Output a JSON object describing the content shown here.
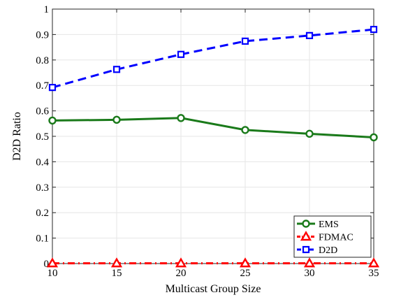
{
  "chart_data": {
    "type": "line",
    "xlabel": "Multicast Group Size",
    "ylabel": "D2D Ratio",
    "x": [
      10,
      15,
      20,
      25,
      30,
      35
    ],
    "xlim": [
      10,
      35
    ],
    "ylim": [
      0,
      1
    ],
    "xticks": [
      "10",
      "15",
      "20",
      "25",
      "30",
      "35"
    ],
    "yticks": [
      "0",
      "0.1",
      "0.2",
      "0.3",
      "0.4",
      "0.5",
      "0.6",
      "0.7",
      "0.8",
      "0.9",
      "1"
    ],
    "grid": true,
    "legend_position": "bottom-right",
    "series": [
      {
        "name": "EMS",
        "values": [
          0.562,
          0.565,
          0.572,
          0.525,
          0.51,
          0.496
        ],
        "color": "#1a7a1a",
        "dash": "solid",
        "marker": "circle"
      },
      {
        "name": "FDMAC",
        "values": [
          0.001,
          0.001,
          0.001,
          0.001,
          0.001,
          0.001
        ],
        "color": "#ff0000",
        "dash": "dashdot",
        "marker": "triangle"
      },
      {
        "name": "D2D",
        "values": [
          0.692,
          0.763,
          0.822,
          0.874,
          0.896,
          0.92
        ],
        "color": "#0000ff",
        "dash": "dashed",
        "marker": "square"
      }
    ]
  }
}
